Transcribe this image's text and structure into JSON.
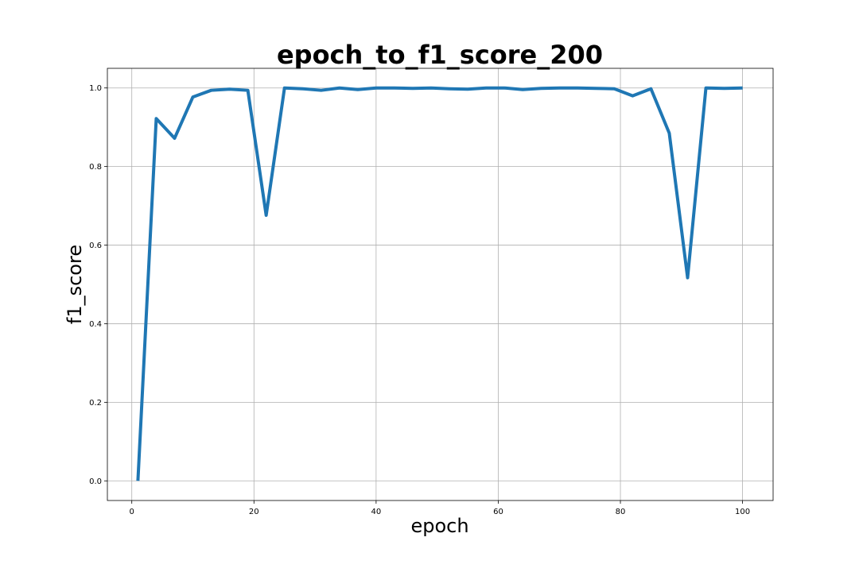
{
  "chart_data": {
    "type": "line",
    "title": "epoch_to_f1_score_200",
    "xlabel": "epoch",
    "ylabel": "f1_score",
    "xlim": [
      -4,
      105
    ],
    "ylim": [
      -0.05,
      1.05
    ],
    "xticks": [
      0,
      20,
      40,
      60,
      80,
      100
    ],
    "xtick_labels": [
      "0",
      "20",
      "40",
      "60",
      "80",
      "100"
    ],
    "yticks": [
      0.0,
      0.2,
      0.4,
      0.6,
      0.8,
      1.0
    ],
    "ytick_labels": [
      "0.0",
      "0.2",
      "0.4",
      "0.6",
      "0.8",
      "1.0"
    ],
    "grid": true,
    "series": [
      {
        "color": "#1f77b4",
        "x": [
          1,
          4,
          7,
          10,
          13,
          16,
          19,
          22,
          25,
          28,
          31,
          34,
          37,
          40,
          43,
          46,
          49,
          52,
          55,
          58,
          61,
          64,
          67,
          70,
          73,
          76,
          79,
          82,
          85,
          88,
          91,
          94,
          97,
          100
        ],
        "y": [
          0.0,
          0.922,
          0.872,
          0.977,
          0.994,
          0.997,
          0.994,
          0.676,
          1.0,
          0.998,
          0.994,
          1.0,
          0.996,
          1.0,
          1.0,
          0.999,
          1.0,
          0.998,
          0.997,
          1.0,
          1.0,
          0.996,
          0.999,
          1.0,
          1.0,
          0.999,
          0.998,
          0.98,
          0.998,
          0.885,
          0.517,
          1.0,
          0.999,
          1.0
        ]
      }
    ]
  }
}
